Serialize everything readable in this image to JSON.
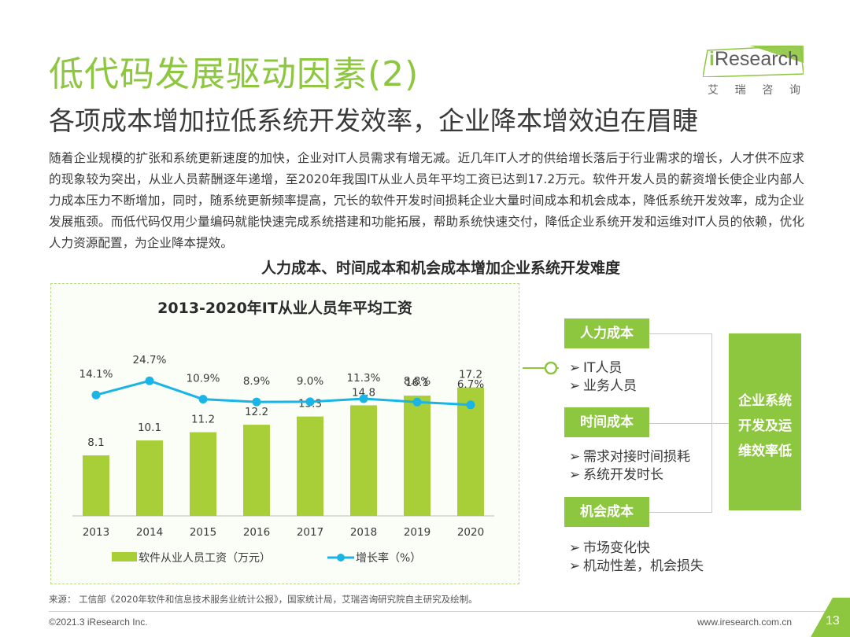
{
  "header": {
    "title": "低代码发展驱动因素(2)",
    "subtitle": "各项成本增加拉低系统开发效率，企业降本增效迫在眉睫"
  },
  "logo": {
    "brand_prefix": "i",
    "brand_rest": "Research",
    "cn_chars": [
      "艾",
      "瑞",
      "咨",
      "询"
    ]
  },
  "paragraph": "随着企业规模的扩张和系统更新速度的加快，企业对IT人员需求有增无减。近几年IT人才的供给增长落后于行业需求的增长，人才供不应求的现象较为突出，从业人员薪酬逐年递增，至2020年我国IT从业人员年平均工资已达到17.2万元。软件开发人员的薪资增长使企业内部人力成本压力不断增加，同时，随系统更新频率提高，冗长的软件开发时间损耗企业大量时间成本和机会成本，降低系统开发效率，成为企业发展瓶颈。而低代码仅用少量编码就能快速完成系统搭建和功能拓展，帮助系统快速交付，降低企业系统开发和运维对IT人员的依赖，优化人力资源配置，为企业降本提效。",
  "chart_heading": "人力成本、时间成本和机会成本增加企业系统开发难度",
  "chart_data": {
    "type": "bar",
    "title": "2013-2020年IT从业人员年平均工资",
    "categories": [
      "2013",
      "2014",
      "2015",
      "2016",
      "2017",
      "2018",
      "2019",
      "2020"
    ],
    "series": [
      {
        "name": "软件从业人员工资（万元）",
        "type": "bar",
        "values": [
          8.1,
          10.1,
          11.2,
          12.2,
          13.3,
          14.8,
          16.1,
          17.2
        ],
        "labels": [
          "8.1",
          "10.1",
          "11.2",
          "12.2",
          "13.3",
          "14.8",
          "16.1",
          "17.2"
        ],
        "color": "#a8cf38"
      },
      {
        "name": "增长率（%）",
        "type": "line",
        "values": [
          14.1,
          24.7,
          10.9,
          8.9,
          9.0,
          11.3,
          8.8,
          6.7
        ],
        "labels": [
          "14.1%",
          "24.7%",
          "10.9%",
          "8.9%",
          "9.0%",
          "11.3%",
          "8.8%",
          "6.7%"
        ],
        "color": "#1ab5e6"
      }
    ],
    "xlabel": "",
    "ylabel": "",
    "ylim": [
      0,
      20
    ],
    "grid": false,
    "legend": "bottom"
  },
  "factors": [
    {
      "label": "人力成本",
      "bullets": [
        "IT人员",
        "业务人员"
      ]
    },
    {
      "label": "时间成本",
      "bullets": [
        "需求对接时间损耗",
        "系统开发时长"
      ]
    },
    {
      "label": "机会成本",
      "bullets": [
        "市场变化快",
        "机动性差，机会损失"
      ]
    }
  ],
  "bullet_arrow": "➢",
  "result": [
    "企业系统",
    "开发及运",
    "维效率低"
  ],
  "footer": {
    "source": "来源：  工信部《2020年软件和信息技术服务业统计公报》，国家统计局，艾瑞咨询研究院自主研究及绘制。",
    "copyright": "©2021.3 iResearch Inc.",
    "website": "www.iresearch.com.cn",
    "page": "13"
  },
  "colors": {
    "accent": "#8dc63f",
    "bar": "#a8cf38",
    "line": "#1ab5e6"
  }
}
